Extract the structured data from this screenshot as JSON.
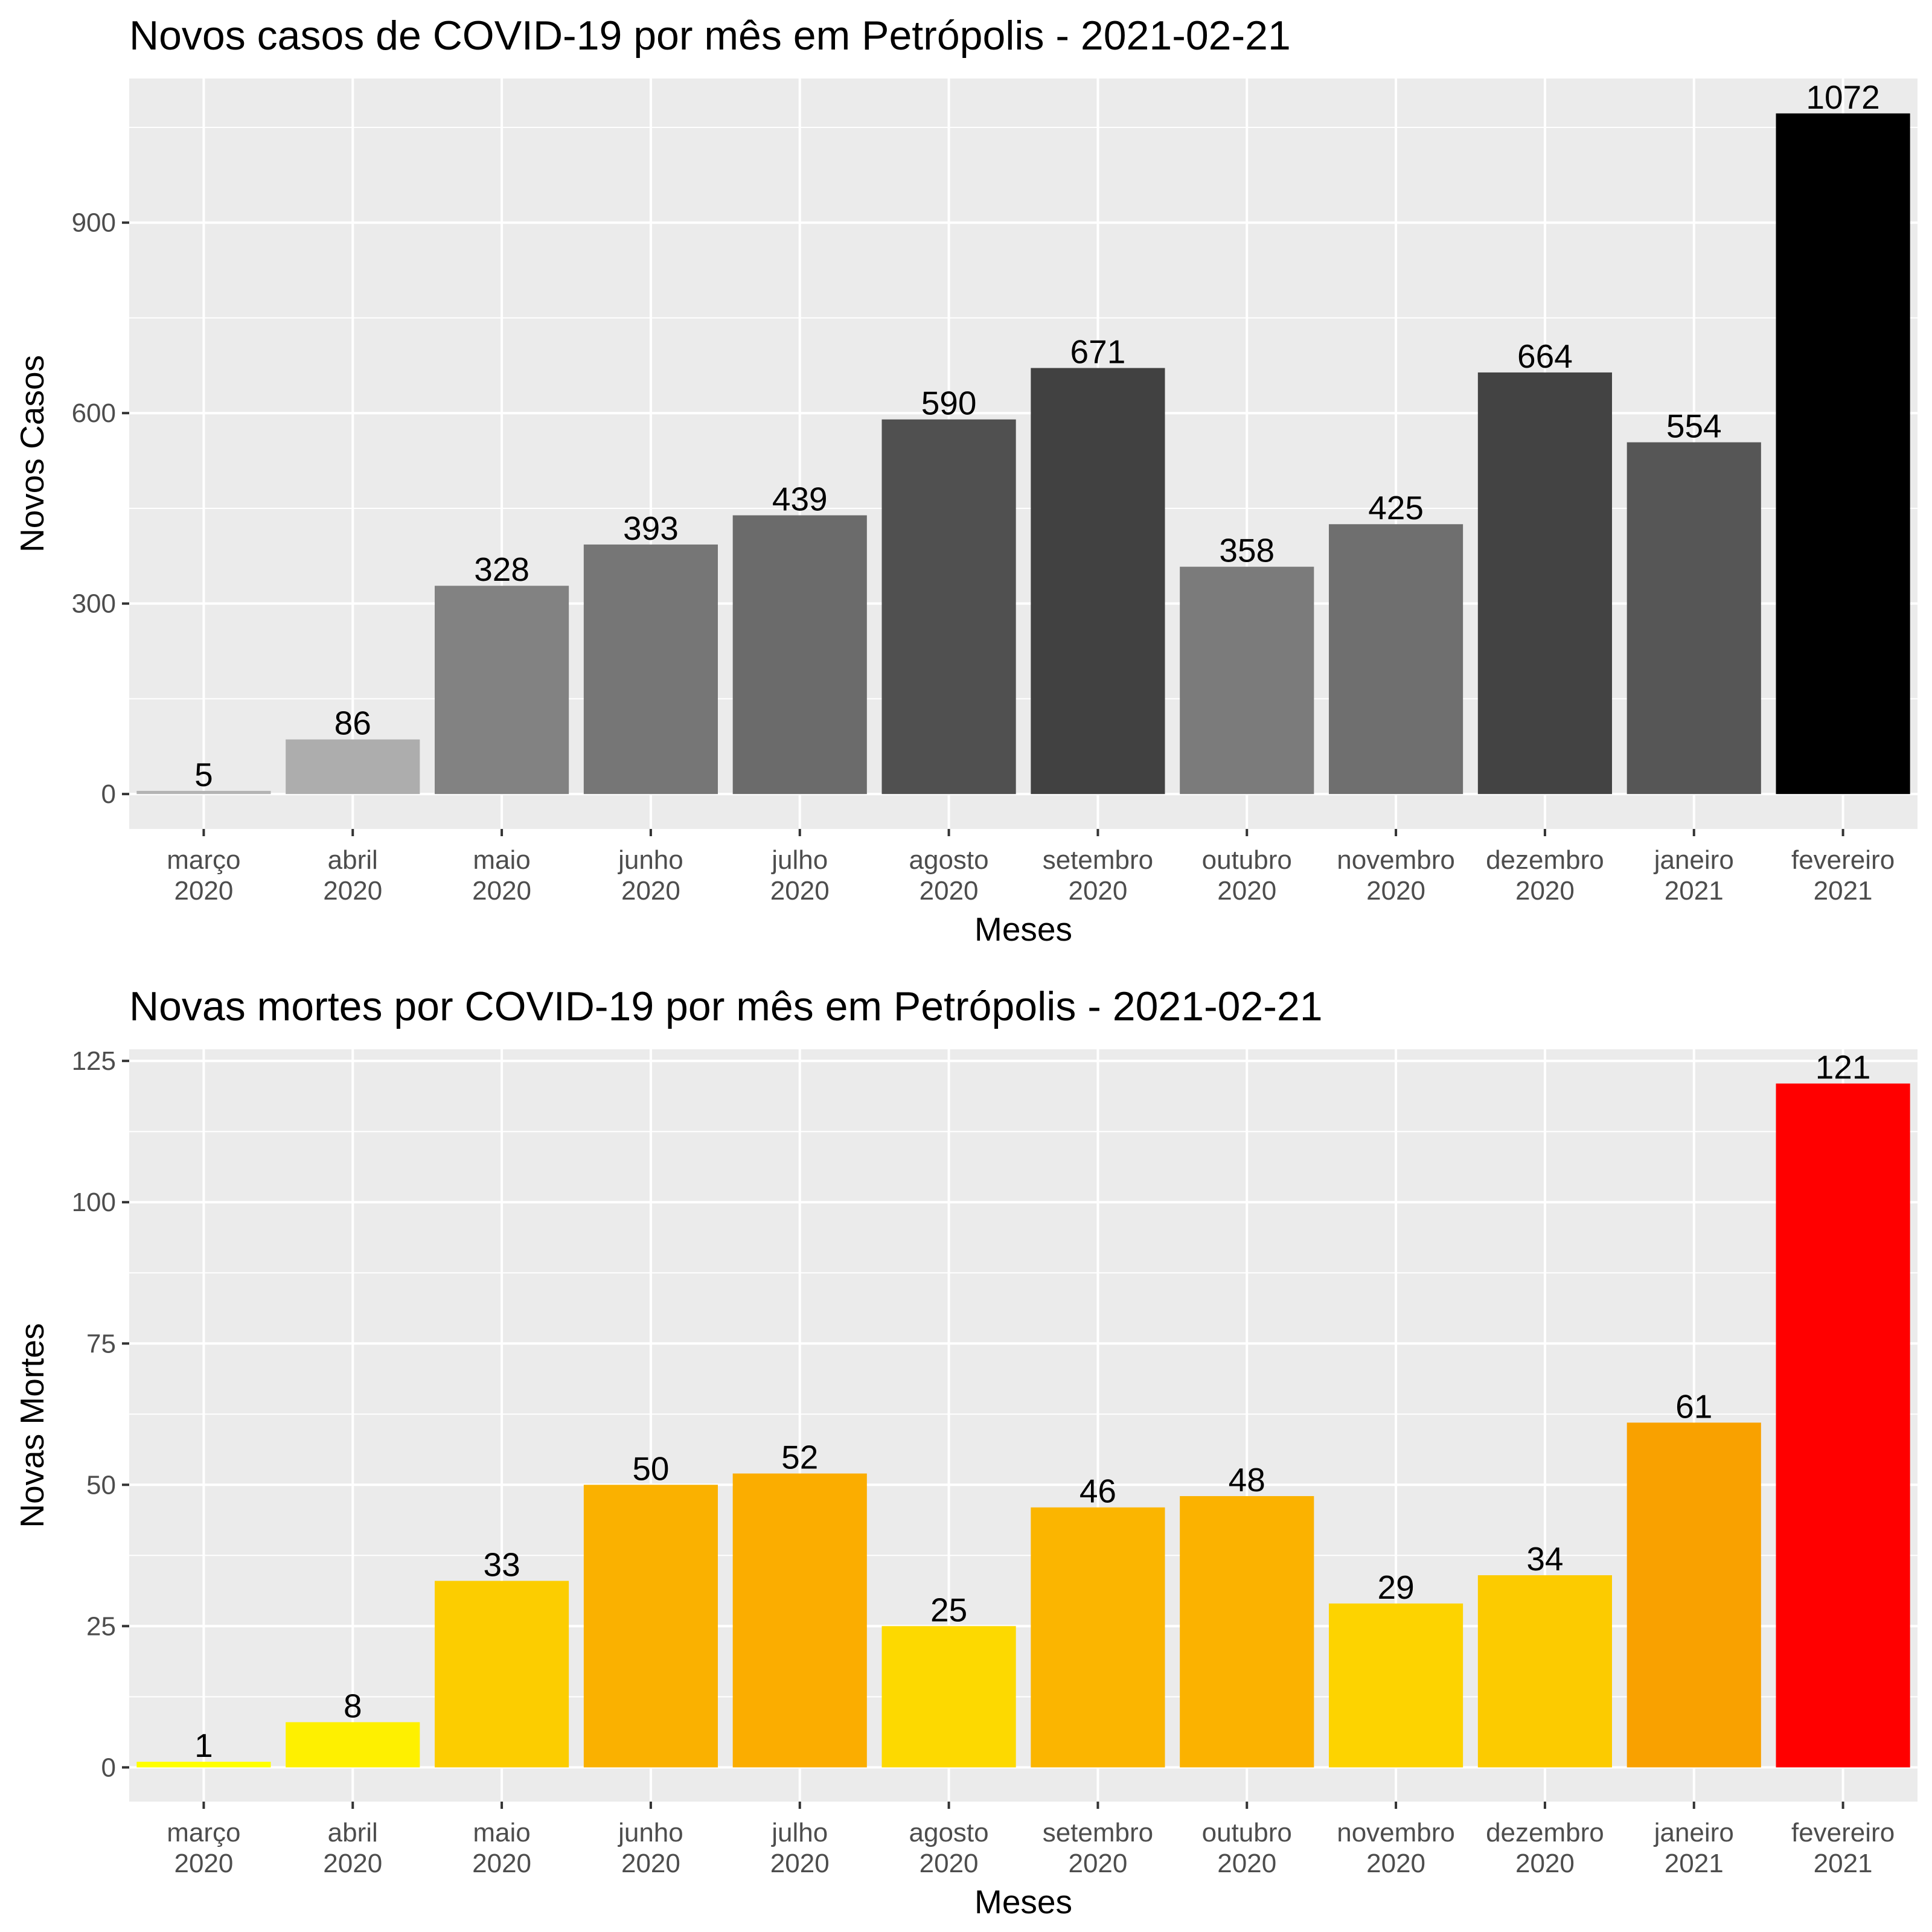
{
  "chart_data": [
    {
      "type": "bar",
      "title": "Novos casos de COVID-19 por mês em Petrópolis - 2021-02-21",
      "xlabel": "Meses",
      "ylabel": "Novos Casos",
      "categories": [
        "março\n2020",
        "abril\n2020",
        "maio\n2020",
        "junho\n2020",
        "julho\n2020",
        "agosto\n2020",
        "setembro\n2020",
        "outubro\n2020",
        "novembro\n2020",
        "dezembro\n2020",
        "janeiro\n2021",
        "fevereiro\n2021"
      ],
      "values": [
        5,
        86,
        328,
        393,
        439,
        590,
        671,
        358,
        425,
        664,
        554,
        1072
      ],
      "colors": [
        "#b3b3b3",
        "#adadad",
        "#828282",
        "#767676",
        "#6b6b6b",
        "#505050",
        "#414141",
        "#7b7b7b",
        "#6f6f6f",
        "#434343",
        "#565656",
        "#000000"
      ],
      "ylim": [
        -55,
        1127
      ],
      "yticks": [
        0,
        300,
        600,
        900
      ],
      "grid": true,
      "legend": "none"
    },
    {
      "type": "bar",
      "title": "Novas mortes por COVID-19 por mês em Petrópolis - 2021-02-21",
      "xlabel": "Meses",
      "ylabel": "Novas Mortes",
      "categories": [
        "março\n2020",
        "abril\n2020",
        "maio\n2020",
        "junho\n2020",
        "julho\n2020",
        "agosto\n2020",
        "setembro\n2020",
        "outubro\n2020",
        "novembro\n2020",
        "dezembro\n2020",
        "janeiro\n2021",
        "fevereiro\n2021"
      ],
      "values": [
        1,
        8,
        33,
        50,
        52,
        25,
        46,
        48,
        29,
        34,
        61,
        121
      ],
      "colors": [
        "#ffff00",
        "#fef000",
        "#fccd00",
        "#fab100",
        "#fbad00",
        "#fdd900",
        "#fbb500",
        "#fbb200",
        "#fdd300",
        "#fccb00",
        "#f9a100",
        "#ff0000"
      ],
      "ylim": [
        -6.05,
        127.05
      ],
      "yticks": [
        0,
        25,
        50,
        75,
        100,
        125
      ],
      "grid": true,
      "legend": "none"
    }
  ]
}
